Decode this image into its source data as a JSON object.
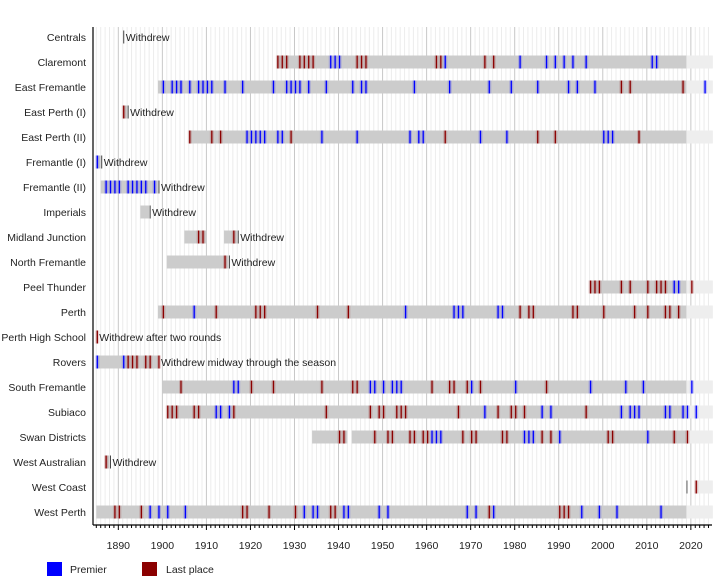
{
  "chart_data": {
    "type": "timeline",
    "title": "",
    "xlabel": "",
    "ylabel": "",
    "xlim": [
      1884.25,
      2024.8
    ],
    "x_ticks": [
      1890,
      1900,
      1910,
      1920,
      1930,
      1940,
      1950,
      1960,
      1970,
      1980,
      1990,
      2000,
      2010,
      2020
    ],
    "grid": {
      "major_every_years": 10,
      "minor_every_years": 1
    },
    "colors": {
      "premier": "#0000ff",
      "last_place": "#8b0000",
      "season_bar": "#cccccc",
      "recent_bar": "#eeeeee",
      "withdraw_line": "#444444"
    },
    "legend": {
      "placement": "bottom-left",
      "items": [
        {
          "label": "Premier",
          "color": "#0000ff"
        },
        {
          "label": "Last place",
          "color": "#8b0000"
        }
      ]
    },
    "teams": [
      {
        "name": "Centrals",
        "seasons": [],
        "withdrew": 1891,
        "note": "Withdrew",
        "premiers": [],
        "last": []
      },
      {
        "name": "Claremont",
        "seasons": [
          [
            1926,
            2019
          ]
        ],
        "recent": [
          2019,
          2025
        ],
        "premiers": [
          1938,
          1939,
          1940,
          1964,
          1981,
          1987,
          1989,
          1991,
          1993,
          1996,
          2011,
          2012
        ],
        "last": [
          1926,
          1927,
          1928,
          1931,
          1932,
          1933,
          1934,
          1944,
          1945,
          1946,
          1962,
          1963,
          1973,
          1975
        ]
      },
      {
        "name": "East Fremantle",
        "seasons": [
          [
            1899,
            2019
          ]
        ],
        "recent": [
          2019,
          2025
        ],
        "premiers": [
          1900,
          1902,
          1903,
          1904,
          1906,
          1908,
          1909,
          1910,
          1911,
          1914,
          1918,
          1925,
          1928,
          1929,
          1930,
          1931,
          1933,
          1937,
          1943,
          1945,
          1946,
          1957,
          1965,
          1974,
          1979,
          1985,
          1992,
          1994,
          1998,
          2023
        ],
        "last": [
          2004,
          2006,
          2018
        ]
      },
      {
        "name": "East Perth (I)",
        "seasons": [
          [
            1891,
            1892
          ]
        ],
        "withdrew": 1892,
        "note": "Withdrew",
        "premiers": [],
        "last": [
          1891
        ]
      },
      {
        "name": "East Perth (II)",
        "seasons": [
          [
            1906,
            2019
          ]
        ],
        "recent": [
          2019,
          2025
        ],
        "premiers": [
          1919,
          1920,
          1921,
          1922,
          1923,
          1926,
          1927,
          1936,
          1944,
          1956,
          1958,
          1959,
          1972,
          1978,
          2000,
          2001,
          2002
        ],
        "last": [
          1906,
          1911,
          1913,
          1929,
          1964,
          1985,
          1989,
          2008
        ]
      },
      {
        "name": "Fremantle (I)",
        "seasons": [
          [
            1885,
            1886
          ]
        ],
        "withdrew": 1886,
        "note": "Withdrew",
        "premiers": [
          1885
        ],
        "last": []
      },
      {
        "name": "Fremantle (II)",
        "seasons": [
          [
            1886,
            1899
          ]
        ],
        "withdrew": 1899,
        "note": "Withdrew",
        "premiers": [
          1887,
          1888,
          1889,
          1890,
          1892,
          1893,
          1894,
          1895,
          1896,
          1898
        ],
        "last": []
      },
      {
        "name": "Imperials",
        "seasons": [
          [
            1895,
            1897
          ]
        ],
        "withdrew": 1897,
        "note": "Withdrew",
        "premiers": [],
        "last": []
      },
      {
        "name": "Midland Junction",
        "seasons": [
          [
            1905,
            1910
          ],
          [
            1914,
            1917
          ]
        ],
        "withdrew": 1917,
        "note": "Withdrew",
        "premiers": [],
        "last": [
          1908,
          1909,
          1916
        ]
      },
      {
        "name": "North Fremantle",
        "seasons": [
          [
            1901,
            1915
          ]
        ],
        "withdrew": 1915,
        "note": "Withdrew",
        "premiers": [],
        "last": [
          1914
        ]
      },
      {
        "name": "Peel Thunder",
        "seasons": [
          [
            1997,
            2019
          ]
        ],
        "recent": [
          2019,
          2025
        ],
        "premiers": [
          2016,
          2017
        ],
        "last": [
          1997,
          1998,
          1999,
          2004,
          2006,
          2010,
          2012,
          2013,
          2014,
          2020
        ]
      },
      {
        "name": "Perth",
        "seasons": [
          [
            1899,
            2019
          ]
        ],
        "recent": [
          2019,
          2025
        ],
        "premiers": [
          1907,
          1955,
          1966,
          1967,
          1968,
          1976,
          1977
        ],
        "last": [
          1900,
          1912,
          1921,
          1922,
          1923,
          1935,
          1942,
          1981,
          1983,
          1984,
          1993,
          1994,
          2000,
          2007,
          2010,
          2014,
          2015,
          2017
        ]
      },
      {
        "name": "Perth High School",
        "seasons": [],
        "withdrew": 1885,
        "note": "Withdrew after two rounds",
        "premiers": [],
        "last": [
          1885
        ]
      },
      {
        "name": "Rovers",
        "seasons": [
          [
            1885,
            1899
          ]
        ],
        "withdrew": 1899,
        "note": "Withdrew midway through the season",
        "premiers": [
          1885,
          1891
        ],
        "last": [
          1892,
          1893,
          1894,
          1896,
          1897,
          1899
        ]
      },
      {
        "name": "South Fremantle",
        "seasons": [
          [
            1900,
            2019
          ]
        ],
        "recent": [
          2019,
          2025
        ],
        "premiers": [
          1916,
          1917,
          1947,
          1948,
          1950,
          1952,
          1953,
          1954,
          1970,
          1980,
          1997,
          2005,
          2009,
          2020
        ],
        "last": [
          1904,
          1920,
          1925,
          1936,
          1943,
          1944,
          1961,
          1965,
          1966,
          1969,
          1972,
          1987
        ]
      },
      {
        "name": "Subiaco",
        "seasons": [
          [
            1901,
            2019
          ]
        ],
        "recent": [
          2019,
          2025
        ],
        "premiers": [
          1912,
          1913,
          1915,
          1973,
          1986,
          1988,
          2004,
          2006,
          2007,
          2008,
          2014,
          2015,
          2018,
          2019,
          2021
        ],
        "last": [
          1901,
          1902,
          1903,
          1907,
          1908,
          1916,
          1937,
          1947,
          1949,
          1950,
          1953,
          1954,
          1955,
          1967,
          1976,
          1979,
          1980,
          1982,
          1996
        ]
      },
      {
        "name": "Swan Districts",
        "seasons": [
          [
            1934,
            1942
          ],
          [
            1943,
            2019
          ]
        ],
        "recent": [
          2019,
          2025
        ],
        "premiers": [
          1961,
          1962,
          1963,
          1982,
          1983,
          1984,
          1990,
          2010
        ],
        "last": [
          1940,
          1941,
          1948,
          1951,
          1952,
          1956,
          1957,
          1959,
          1960,
          1968,
          1970,
          1971,
          1977,
          1978,
          1986,
          1988,
          2001,
          2002,
          2016,
          2019
        ]
      },
      {
        "name": "West Australian",
        "seasons": [
          [
            1887,
            1888
          ]
        ],
        "withdrew": 1888,
        "note": "Withdrew",
        "premiers": [],
        "last": [
          1887
        ]
      },
      {
        "name": "West Coast",
        "seasons": [],
        "recent": [
          2021,
          2025
        ],
        "unlabeled_marks": [
          2019
        ],
        "premiers": [],
        "last": [
          2021
        ]
      },
      {
        "name": "West Perth",
        "seasons": [
          [
            1885,
            2019
          ]
        ],
        "recent": [
          2019,
          2025
        ],
        "premiers": [
          1897,
          1899,
          1901,
          1905,
          1932,
          1934,
          1935,
          1941,
          1942,
          1949,
          1951,
          1969,
          1971,
          1975,
          1995,
          1999,
          2003,
          2013
        ],
        "last": [
          1889,
          1890,
          1895,
          1918,
          1919,
          1924,
          1930,
          1938,
          1939,
          1974,
          1990,
          1991,
          1992
        ]
      }
    ]
  }
}
